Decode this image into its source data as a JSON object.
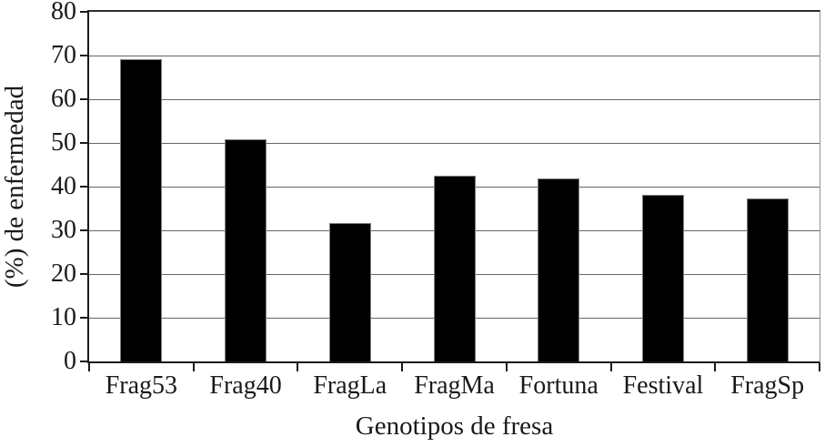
{
  "chart_data": {
    "type": "bar",
    "title": "",
    "xlabel": "Genotipos de fresa",
    "ylabel": "(%) de enfermedad",
    "categories": [
      "Frag53",
      "Frag40",
      "FragLa",
      "FragMa",
      "Fortuna",
      "Festival",
      "FragSp"
    ],
    "values": [
      69.2,
      50.9,
      31.7,
      42.6,
      41.9,
      38.1,
      37.2
    ],
    "ylim": [
      0,
      80
    ],
    "yticks": [
      0,
      10,
      20,
      30,
      40,
      50,
      60,
      70,
      80
    ],
    "grid": true,
    "legend": false,
    "colors": {
      "bar": "#000000",
      "bar_border": "#7f7f7f",
      "gridline": "#666666",
      "axis": "#1a1a1a",
      "text": "#1a1a1a",
      "background": "#ffffff"
    }
  }
}
